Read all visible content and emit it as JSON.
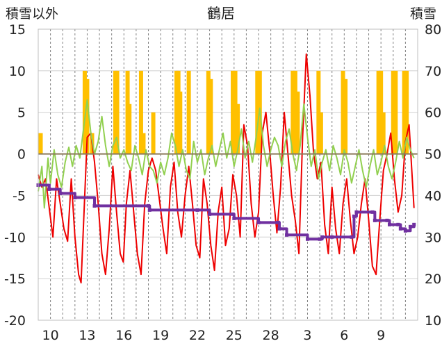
{
  "chart_data": {
    "title": "鶴居",
    "type": "line",
    "left_axis": {
      "label": "積雪以外",
      "ylim": [
        -20,
        15
      ],
      "ticks": [
        15,
        10,
        5,
        0,
        -5,
        -10,
        -15,
        -20
      ]
    },
    "right_axis": {
      "label": "積雪",
      "ylim": [
        10,
        80
      ],
      "ticks": [
        80,
        70,
        60,
        50,
        40,
        30,
        20,
        10
      ]
    },
    "x_tick_labels": [
      "10",
      "13",
      "16",
      "19",
      "22",
      "25",
      "28",
      "3",
      "6",
      "9"
    ],
    "x_days": 31,
    "grid": "horizontal solid lines at left-axis ticks, vertical dashed daily lines",
    "colors": {
      "red_series": "#ee0000",
      "green_series": "#92d050",
      "orange_bars": "#ffc000",
      "purple_series": "#7030a0",
      "zero_line": "#8b7a5a"
    },
    "series": [
      {
        "axis": "left",
        "color": "#ee0000",
        "style": "line",
        "points": [
          [
            0.0,
            -2.5
          ],
          [
            0.3,
            -4.0
          ],
          [
            0.6,
            -3.0
          ],
          [
            0.9,
            -6.5
          ],
          [
            1.2,
            -10.0
          ],
          [
            1.5,
            -3.0
          ],
          [
            1.8,
            -6.0
          ],
          [
            2.1,
            -9.0
          ],
          [
            2.4,
            -10.5
          ],
          [
            2.7,
            -3.0
          ],
          [
            3.0,
            -10.0
          ],
          [
            3.3,
            -14.5
          ],
          [
            3.5,
            -15.5
          ],
          [
            3.8,
            -5.0
          ],
          [
            4.0,
            2.0
          ],
          [
            4.3,
            2.5
          ],
          [
            4.6,
            -1.0
          ],
          [
            4.9,
            -6.0
          ],
          [
            5.2,
            -12.0
          ],
          [
            5.5,
            -14.5
          ],
          [
            5.8,
            -9.0
          ],
          [
            6.1,
            -1.5
          ],
          [
            6.4,
            -7.0
          ],
          [
            6.7,
            -12.0
          ],
          [
            6.95,
            -13.0
          ],
          [
            7.2,
            -6.0
          ],
          [
            7.5,
            -2.0
          ],
          [
            7.8,
            -7.0
          ],
          [
            8.1,
            -12.0
          ],
          [
            8.4,
            -14.5
          ],
          [
            8.7,
            -6.0
          ],
          [
            9.0,
            -2.0
          ],
          [
            9.3,
            -0.5
          ],
          [
            9.6,
            -2.0
          ],
          [
            9.9,
            -5.5
          ],
          [
            10.2,
            -9.0
          ],
          [
            10.5,
            -12.0
          ],
          [
            10.8,
            -4.0
          ],
          [
            11.1,
            -1.0
          ],
          [
            11.4,
            -7.0
          ],
          [
            11.7,
            -10.0
          ],
          [
            12.0,
            -5.0
          ],
          [
            12.3,
            -1.5
          ],
          [
            12.6,
            -6.0
          ],
          [
            12.9,
            -11.0
          ],
          [
            13.2,
            -12.5
          ],
          [
            13.5,
            -3.0
          ],
          [
            13.8,
            -6.0
          ],
          [
            14.1,
            -11.0
          ],
          [
            14.4,
            -14.0
          ],
          [
            14.7,
            -7.0
          ],
          [
            15.0,
            -4.0
          ],
          [
            15.3,
            -11.0
          ],
          [
            15.6,
            -9.0
          ],
          [
            15.9,
            -2.5
          ],
          [
            16.2,
            -5.0
          ],
          [
            16.5,
            -10.0
          ],
          [
            16.8,
            3.5
          ],
          [
            17.1,
            1.0
          ],
          [
            17.4,
            -6.0
          ],
          [
            17.7,
            -10.0
          ],
          [
            18.0,
            -7.0
          ],
          [
            18.3,
            2.5
          ],
          [
            18.6,
            5.0
          ],
          [
            18.9,
            0.5
          ],
          [
            19.2,
            -5.0
          ],
          [
            19.5,
            -9.5
          ],
          [
            19.8,
            -4.0
          ],
          [
            20.1,
            5.0
          ],
          [
            20.4,
            0.0
          ],
          [
            20.7,
            -5.0
          ],
          [
            21.0,
            -8.0
          ],
          [
            21.3,
            -12.0
          ],
          [
            21.6,
            2.0
          ],
          [
            21.9,
            12.0
          ],
          [
            22.2,
            7.0
          ],
          [
            22.5,
            0.0
          ],
          [
            22.8,
            -3.0
          ],
          [
            23.1,
            -1.0
          ],
          [
            23.4,
            -8.5
          ],
          [
            23.7,
            -12.0
          ],
          [
            24.0,
            -4.0
          ],
          [
            24.3,
            -9.0
          ],
          [
            24.6,
            -12.0
          ],
          [
            24.9,
            -6.0
          ],
          [
            25.2,
            -3.0
          ],
          [
            25.5,
            -8.0
          ],
          [
            25.8,
            -12.0
          ],
          [
            26.1,
            -10.0
          ],
          [
            26.4,
            -6.0
          ],
          [
            26.7,
            -3.0
          ],
          [
            27.0,
            -8.0
          ],
          [
            27.3,
            -13.5
          ],
          [
            27.6,
            -14.5
          ],
          [
            27.9,
            -8.0
          ],
          [
            28.2,
            -2.0
          ],
          [
            28.5,
            0.0
          ],
          [
            28.8,
            2.5
          ],
          [
            29.1,
            -3.0
          ],
          [
            29.4,
            -7.0
          ],
          [
            29.7,
            -5.0
          ],
          [
            30.0,
            1.5
          ],
          [
            30.3,
            3.5
          ],
          [
            30.5,
            -1.5
          ],
          [
            30.7,
            -6.5
          ]
        ]
      },
      {
        "axis": "left",
        "color": "#92d050",
        "style": "line",
        "points": [
          [
            0.0,
            -4.5
          ],
          [
            0.3,
            -1.5
          ],
          [
            0.5,
            -6.5
          ],
          [
            0.8,
            -0.5
          ],
          [
            1.0,
            -3.5
          ],
          [
            1.3,
            0.5
          ],
          [
            1.6,
            -2.5
          ],
          [
            1.9,
            -4.0
          ],
          [
            2.2,
            -1.0
          ],
          [
            2.5,
            0.8
          ],
          [
            2.8,
            -1.5
          ],
          [
            3.1,
            1.0
          ],
          [
            3.4,
            -0.5
          ],
          [
            3.7,
            3.0
          ],
          [
            4.0,
            6.5
          ],
          [
            4.3,
            2.5
          ],
          [
            4.6,
            0.0
          ],
          [
            4.9,
            1.5
          ],
          [
            5.2,
            4.5
          ],
          [
            5.5,
            1.0
          ],
          [
            5.8,
            -1.5
          ],
          [
            6.1,
            1.0
          ],
          [
            6.4,
            2.0
          ],
          [
            6.7,
            -0.5
          ],
          [
            7.0,
            0.5
          ],
          [
            7.3,
            -1.0
          ],
          [
            7.6,
            -2.0
          ],
          [
            7.9,
            1.0
          ],
          [
            8.2,
            -0.5
          ],
          [
            8.5,
            -2.5
          ],
          [
            8.8,
            0.5
          ],
          [
            9.1,
            -1.5
          ],
          [
            9.4,
            -2.0
          ],
          [
            9.7,
            -3.5
          ],
          [
            10.0,
            -1.0
          ],
          [
            10.3,
            -2.5
          ],
          [
            10.6,
            -0.5
          ],
          [
            10.9,
            2.5
          ],
          [
            11.2,
            1.0
          ],
          [
            11.5,
            -1.5
          ],
          [
            11.8,
            0.5
          ],
          [
            12.1,
            -2.0
          ],
          [
            12.4,
            -3.0
          ],
          [
            12.7,
            1.5
          ],
          [
            13.0,
            -1.0
          ],
          [
            13.3,
            0.5
          ],
          [
            13.6,
            -2.5
          ],
          [
            13.9,
            -0.5
          ],
          [
            14.2,
            1.0
          ],
          [
            14.5,
            -1.5
          ],
          [
            14.8,
            0.5
          ],
          [
            15.1,
            2.5
          ],
          [
            15.4,
            -0.5
          ],
          [
            15.7,
            1.5
          ],
          [
            16.0,
            -1.5
          ],
          [
            16.3,
            0.5
          ],
          [
            16.6,
            3.0
          ],
          [
            16.9,
            -0.5
          ],
          [
            17.2,
            1.5
          ],
          [
            17.5,
            -1.0
          ],
          [
            17.8,
            2.0
          ],
          [
            18.1,
            5.5
          ],
          [
            18.4,
            1.0
          ],
          [
            18.7,
            -1.5
          ],
          [
            19.0,
            0.5
          ],
          [
            19.3,
            2.0
          ],
          [
            19.6,
            1.0
          ],
          [
            19.9,
            -1.5
          ],
          [
            20.2,
            1.5
          ],
          [
            20.5,
            3.0
          ],
          [
            20.8,
            0.0
          ],
          [
            21.1,
            -2.0
          ],
          [
            21.4,
            1.0
          ],
          [
            21.7,
            6.0
          ],
          [
            22.0,
            2.0
          ],
          [
            22.3,
            -1.5
          ],
          [
            22.6,
            0.5
          ],
          [
            22.9,
            -3.0
          ],
          [
            23.2,
            -1.0
          ],
          [
            23.5,
            0.5
          ],
          [
            23.8,
            -2.0
          ],
          [
            24.1,
            1.0
          ],
          [
            24.4,
            -0.5
          ],
          [
            24.7,
            -2.5
          ],
          [
            25.0,
            0.5
          ],
          [
            25.3,
            -1.0
          ],
          [
            25.6,
            -3.5
          ],
          [
            25.9,
            -1.5
          ],
          [
            26.2,
            0.5
          ],
          [
            26.5,
            -2.0
          ],
          [
            26.8,
            -4.0
          ],
          [
            27.1,
            -1.5
          ],
          [
            27.4,
            0.5
          ],
          [
            27.7,
            -2.5
          ],
          [
            28.0,
            -1.0
          ],
          [
            28.3,
            1.0
          ],
          [
            28.6,
            -1.5
          ],
          [
            28.9,
            -3.0
          ],
          [
            29.2,
            -1.0
          ],
          [
            29.5,
            1.5
          ],
          [
            29.8,
            -0.5
          ],
          [
            30.1,
            2.0
          ],
          [
            30.4,
            0.5
          ],
          [
            30.7,
            -0.5
          ]
        ]
      },
      {
        "axis": "right",
        "color": "#ffc000",
        "style": "bars",
        "points": [
          [
            0.2,
            55
          ],
          [
            0.35,
            50
          ],
          [
            3.8,
            70
          ],
          [
            4.0,
            68
          ],
          [
            4.4,
            55
          ],
          [
            6.3,
            70
          ],
          [
            6.45,
            70
          ],
          [
            7.3,
            70
          ],
          [
            7.45,
            62
          ],
          [
            8.4,
            70
          ],
          [
            8.6,
            55
          ],
          [
            9.4,
            60
          ],
          [
            11.3,
            70
          ],
          [
            11.45,
            70
          ],
          [
            11.6,
            65
          ],
          [
            12.3,
            70
          ],
          [
            13.9,
            70
          ],
          [
            14.1,
            68
          ],
          [
            15.9,
            70
          ],
          [
            16.1,
            70
          ],
          [
            16.3,
            62
          ],
          [
            17.9,
            70
          ],
          [
            18.1,
            70
          ],
          [
            20.8,
            70
          ],
          [
            21.0,
            70
          ],
          [
            21.2,
            65
          ],
          [
            22.9,
            70
          ],
          [
            23.1,
            60
          ],
          [
            24.9,
            70
          ],
          [
            25.1,
            68
          ],
          [
            27.8,
            70
          ],
          [
            28.0,
            70
          ],
          [
            28.2,
            60
          ],
          [
            29.0,
            70
          ],
          [
            29.2,
            70
          ],
          [
            29.9,
            70
          ],
          [
            30.1,
            70
          ]
        ]
      },
      {
        "axis": "right",
        "color": "#7030a0",
        "style": "step",
        "points": [
          [
            0.0,
            42.5
          ],
          [
            0.9,
            41.5
          ],
          [
            1.8,
            40.5
          ],
          [
            3.0,
            39.5
          ],
          [
            4.6,
            37.5
          ],
          [
            9.0,
            37.5
          ],
          [
            9.1,
            36.5
          ],
          [
            13.0,
            36.5
          ],
          [
            14.0,
            35.5
          ],
          [
            15.9,
            35.5
          ],
          [
            16.0,
            34.5
          ],
          [
            18.0,
            33.5
          ],
          [
            19.6,
            33.5
          ],
          [
            19.7,
            32.0
          ],
          [
            20.3,
            30.5
          ],
          [
            22.0,
            29.5
          ],
          [
            23.0,
            29.5
          ],
          [
            23.2,
            30.0
          ],
          [
            24.0,
            30.0
          ],
          [
            25.6,
            30.0
          ],
          [
            25.8,
            35.0
          ],
          [
            26.0,
            36.0
          ],
          [
            27.3,
            36.0
          ],
          [
            27.5,
            34.0
          ],
          [
            28.5,
            34.0
          ],
          [
            28.7,
            33.0
          ],
          [
            29.4,
            33.0
          ],
          [
            29.6,
            32.0
          ],
          [
            30.0,
            31.5
          ],
          [
            30.4,
            32.5
          ],
          [
            30.7,
            33.0
          ]
        ]
      }
    ]
  }
}
